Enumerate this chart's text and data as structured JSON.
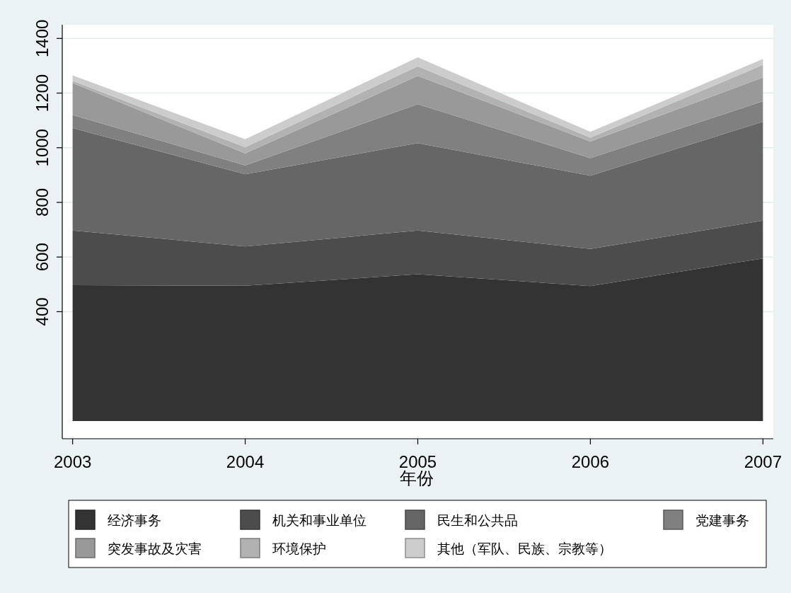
{
  "chart_data": {
    "type": "area",
    "stacked": true,
    "xlabel": "年份",
    "x": [
      2003,
      2004,
      2005,
      2006,
      2007
    ],
    "xlim": [
      2002.94,
      2007.06
    ],
    "xticks": [
      2003,
      2004,
      2005,
      2006,
      2007
    ],
    "ylim": [
      -65,
      1450
    ],
    "yticks": [
      400,
      600,
      800,
      1000,
      1200,
      1400
    ],
    "grid": "y",
    "legend": "bottom",
    "series": [
      {
        "name": "经济事务",
        "color": "#333333",
        "values": [
          497,
          495,
          537,
          494,
          595
        ]
      },
      {
        "name": "机关和事业单位",
        "color": "#4c4c4c",
        "values": [
          200,
          144,
          160,
          136,
          138
        ]
      },
      {
        "name": "民生和公共品",
        "color": "#666666",
        "values": [
          375,
          264,
          320,
          268,
          362
        ]
      },
      {
        "name": "党建事务",
        "color": "#808080",
        "values": [
          48,
          32,
          142,
          64,
          75
        ]
      },
      {
        "name": "突发事故及灾害",
        "color": "#999999",
        "values": [
          117,
          44,
          104,
          61,
          87
        ]
      },
      {
        "name": "环境保护",
        "color": "#b2b2b2",
        "values": [
          8,
          23,
          35,
          14,
          46
        ]
      },
      {
        "name": "其他（军队、民族、宗教等）",
        "color": "#cccccc",
        "values": [
          20,
          29,
          33,
          21,
          22
        ]
      }
    ]
  }
}
